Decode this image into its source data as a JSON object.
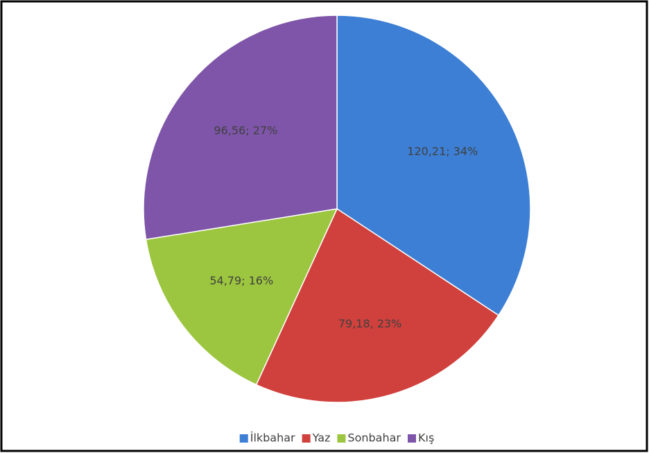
{
  "chart_data": {
    "type": "pie",
    "categories": [
      "İlkbahar",
      "Yaz",
      "Sonbahar",
      "Kış"
    ],
    "values": [
      120.21,
      79.18,
      54.79,
      96.56
    ],
    "value_labels": [
      "120,21; 34%",
      "79,18, 23%",
      "54,79; 16%",
      "96,56; 27%"
    ],
    "colors": [
      "#3d7fd4",
      "#d0403c",
      "#9cc63f",
      "#7e55a8"
    ],
    "legend": "bottom"
  }
}
